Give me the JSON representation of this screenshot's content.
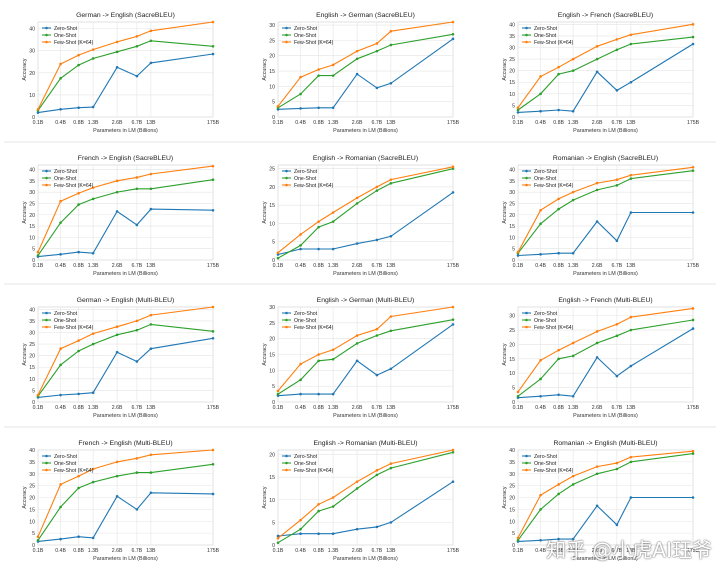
{
  "figure": {
    "x_axis_label": "Parameters in LM (Billions)",
    "y_axis_label": "Accuracy"
  },
  "legend": [
    "Zero-Shot",
    "One-Shot",
    "Few-Shot (K=64)"
  ],
  "colors": {
    "zero": "#1f77b4",
    "one": "#2ca02c",
    "few": "#ff7f0e",
    "grid": "#e4e4e4",
    "text": "#333333"
  },
  "x_tick_labels": [
    "0.1B",
    "0.4B",
    "0.8B",
    "1.3B",
    "2.6B",
    "6.7B",
    "13B",
    "175B"
  ],
  "watermark": "知乎 @小虎AI珏爷",
  "chart_data": [
    {
      "type": "line",
      "title": "German -> English (SacreBLEU)",
      "xlabel": "Parameters in LM (Billions)",
      "ylabel": "Accuracy",
      "x": [
        "0.1B",
        "0.4B",
        "0.8B",
        "1.3B",
        "2.6B",
        "6.7B",
        "13B",
        "175B"
      ],
      "ylim": [
        0,
        43
      ],
      "yticks": [
        0,
        10,
        20,
        30,
        40
      ],
      "series": [
        {
          "name": "Zero-Shot",
          "values": [
            2,
            3.5,
            4.2,
            4.5,
            22.5,
            18.5,
            24.5,
            28.5
          ]
        },
        {
          "name": "One-Shot",
          "values": [
            3,
            17.5,
            23.5,
            26.5,
            29.5,
            32,
            34.5,
            32
          ]
        },
        {
          "name": "Few-Shot (K=64)",
          "values": [
            3.5,
            24,
            28,
            30.5,
            34,
            36.5,
            39,
            43
          ]
        }
      ]
    },
    {
      "type": "line",
      "title": "English -> German (SacreBLEU)",
      "xlabel": "Parameters in LM (Billions)",
      "ylabel": "Accuracy",
      "x": [
        "0.1B",
        "0.4B",
        "0.8B",
        "1.3B",
        "2.6B",
        "6.7B",
        "13B",
        "175B"
      ],
      "ylim": [
        0,
        31
      ],
      "yticks": [
        0,
        5,
        10,
        15,
        20,
        25,
        30
      ],
      "series": [
        {
          "name": "Zero-Shot",
          "values": [
            2.5,
            2.8,
            3,
            3,
            14,
            9.5,
            11,
            25.5
          ]
        },
        {
          "name": "One-Shot",
          "values": [
            3,
            7.5,
            13.5,
            13.5,
            19,
            21.5,
            23.5,
            27
          ]
        },
        {
          "name": "Few-Shot (K=64)",
          "values": [
            3.5,
            13,
            15.5,
            17,
            21.5,
            24,
            28,
            31
          ]
        }
      ]
    },
    {
      "type": "line",
      "title": "English -> French (SacreBLEU)",
      "xlabel": "Parameters in LM (Billions)",
      "ylabel": "Accuracy",
      "x": [
        "0.1B",
        "0.4B",
        "0.8B",
        "1.3B",
        "2.6B",
        "6.7B",
        "13B",
        "175B"
      ],
      "ylim": [
        0,
        41
      ],
      "yticks": [
        0,
        5,
        10,
        15,
        20,
        25,
        30,
        35,
        40
      ],
      "series": [
        {
          "name": "Zero-Shot",
          "values": [
            2,
            2.5,
            3,
            2.5,
            19.5,
            11.5,
            15,
            31.5
          ]
        },
        {
          "name": "One-Shot",
          "values": [
            3,
            10,
            18.5,
            20,
            25,
            29,
            31.5,
            34.5
          ]
        },
        {
          "name": "Few-Shot (K=64)",
          "values": [
            4,
            17.5,
            21.5,
            25,
            30.5,
            33.5,
            35.5,
            40
          ]
        }
      ]
    },
    {
      "type": "line",
      "title": "French -> English (SacreBLEU)",
      "xlabel": "Parameters in LM (Billions)",
      "ylabel": "Accuracy",
      "x": [
        "0.1B",
        "0.4B",
        "0.8B",
        "1.3B",
        "2.6B",
        "6.7B",
        "13B",
        "175B"
      ],
      "ylim": [
        0,
        42
      ],
      "yticks": [
        0,
        5,
        10,
        15,
        20,
        25,
        30,
        35,
        40
      ],
      "series": [
        {
          "name": "Zero-Shot",
          "values": [
            1.5,
            2.5,
            3.5,
            3,
            21.5,
            15.5,
            22.5,
            22
          ]
        },
        {
          "name": "One-Shot",
          "values": [
            2,
            16.5,
            24.5,
            27,
            30,
            31.5,
            31.5,
            35.5
          ]
        },
        {
          "name": "Few-Shot (K=64)",
          "values": [
            3.5,
            26,
            29.5,
            32,
            35,
            36.5,
            38,
            41.5
          ]
        }
      ]
    },
    {
      "type": "line",
      "title": "English -> Romanian (SacreBLEU)",
      "xlabel": "Parameters in LM (Billions)",
      "ylabel": "Accuracy",
      "x": [
        "0.1B",
        "0.4B",
        "0.8B",
        "1.3B",
        "2.6B",
        "6.7B",
        "13B",
        "175B"
      ],
      "ylim": [
        0,
        26
      ],
      "yticks": [
        0,
        5,
        10,
        15,
        20,
        25
      ],
      "series": [
        {
          "name": "Zero-Shot",
          "values": [
            1.5,
            3,
            3,
            3,
            4.5,
            5.5,
            6.5,
            18.5
          ]
        },
        {
          "name": "One-Shot",
          "values": [
            0.5,
            4,
            9,
            10.5,
            15.5,
            19,
            21,
            25
          ]
        },
        {
          "name": "Few-Shot (K=64)",
          "values": [
            2,
            7,
            10.5,
            13,
            17,
            20,
            22,
            25.5
          ]
        }
      ]
    },
    {
      "type": "line",
      "title": "Romanian -> English (SacreBLEU)",
      "xlabel": "Parameters in LM (Billions)",
      "ylabel": "Accuracy",
      "x": [
        "0.1B",
        "0.4B",
        "0.8B",
        "1.3B",
        "2.6B",
        "6.7B",
        "13B",
        "175B"
      ],
      "ylim": [
        0,
        42
      ],
      "yticks": [
        0,
        5,
        10,
        15,
        20,
        25,
        30,
        35,
        40
      ],
      "series": [
        {
          "name": "Zero-Shot",
          "values": [
            2,
            2.5,
            3,
            3,
            17,
            8.5,
            21,
            21
          ]
        },
        {
          "name": "One-Shot",
          "values": [
            3,
            16,
            22.5,
            26.5,
            31,
            33,
            36,
            39.5
          ]
        },
        {
          "name": "Few-Shot (K=64)",
          "values": [
            3.5,
            22,
            27,
            30,
            34,
            35.5,
            37.5,
            41
          ]
        }
      ]
    },
    {
      "type": "line",
      "title": "German -> English (Multi-BLEU)",
      "xlabel": "Parameters in LM (Billions)",
      "ylabel": "Accuracy",
      "x": [
        "0.1B",
        "0.4B",
        "0.8B",
        "1.3B",
        "2.6B",
        "6.7B",
        "13B",
        "175B"
      ],
      "ylim": [
        0,
        41
      ],
      "yticks": [
        0,
        5,
        10,
        15,
        20,
        25,
        30,
        35,
        40
      ],
      "series": [
        {
          "name": "Zero-Shot",
          "values": [
            2,
            3,
            3.5,
            4,
            21.5,
            17.5,
            23,
            27.5
          ]
        },
        {
          "name": "One-Shot",
          "values": [
            2.5,
            16,
            22,
            25,
            29,
            31,
            33.5,
            30.5
          ]
        },
        {
          "name": "Few-Shot (K=64)",
          "values": [
            3,
            23,
            26.5,
            29.5,
            32.5,
            35,
            37.5,
            41
          ]
        }
      ]
    },
    {
      "type": "line",
      "title": "English -> German (Multi-BLEU)",
      "xlabel": "Parameters in LM (Billions)",
      "ylabel": "Accuracy",
      "x": [
        "0.1B",
        "0.4B",
        "0.8B",
        "1.3B",
        "2.6B",
        "6.7B",
        "13B",
        "175B"
      ],
      "ylim": [
        0,
        30
      ],
      "yticks": [
        0,
        5,
        10,
        15,
        20,
        25,
        30
      ],
      "series": [
        {
          "name": "Zero-Shot",
          "values": [
            2,
            2.5,
            2.5,
            2.5,
            13,
            8.5,
            10.5,
            24.5
          ]
        },
        {
          "name": "One-Shot",
          "values": [
            2.5,
            7,
            13,
            13.5,
            18.5,
            21,
            22.5,
            26
          ]
        },
        {
          "name": "Few-Shot (K=64)",
          "values": [
            3.5,
            12,
            15,
            16.5,
            21,
            23,
            27,
            30
          ]
        }
      ]
    },
    {
      "type": "line",
      "title": "English -> French (Multi-BLEU)",
      "xlabel": "Parameters in LM (Billions)",
      "ylabel": "Accuracy",
      "x": [
        "0.1B",
        "0.4B",
        "0.8B",
        "1.3B",
        "2.6B",
        "6.7B",
        "13B",
        "175B"
      ],
      "ylim": [
        0,
        33
      ],
      "yticks": [
        0,
        5,
        10,
        15,
        20,
        25,
        30
      ],
      "series": [
        {
          "name": "Zero-Shot",
          "values": [
            1.5,
            2,
            2.5,
            2,
            15.5,
            9,
            12.5,
            25.5
          ]
        },
        {
          "name": "One-Shot",
          "values": [
            2,
            8,
            15,
            16,
            20.5,
            23,
            25,
            28.5
          ]
        },
        {
          "name": "Few-Shot (K=64)",
          "values": [
            3.5,
            14.5,
            18,
            20.5,
            24.5,
            27,
            29.5,
            32.5
          ]
        }
      ]
    },
    {
      "type": "line",
      "title": "French -> English (Multi-BLEU)",
      "xlabel": "Parameters in LM (Billions)",
      "ylabel": "Accuracy",
      "x": [
        "0.1B",
        "0.4B",
        "0.8B",
        "1.3B",
        "2.6B",
        "6.7B",
        "13B",
        "175B"
      ],
      "ylim": [
        0,
        40
      ],
      "yticks": [
        0,
        5,
        10,
        15,
        20,
        25,
        30,
        35,
        40
      ],
      "series": [
        {
          "name": "Zero-Shot",
          "values": [
            1.5,
            2.5,
            3.5,
            3,
            20.5,
            15,
            22,
            21.5
          ]
        },
        {
          "name": "One-Shot",
          "values": [
            2,
            16,
            24,
            26.5,
            29,
            30.5,
            30.5,
            34
          ]
        },
        {
          "name": "Few-Shot (K=64)",
          "values": [
            3.5,
            25.5,
            29,
            32,
            35,
            36.5,
            38,
            40
          ]
        }
      ]
    },
    {
      "type": "line",
      "title": "English -> Romanian (Multi-BLEU)",
      "xlabel": "Parameters in LM (Billions)",
      "ylabel": "Accuracy",
      "x": [
        "0.1B",
        "0.4B",
        "0.8B",
        "1.3B",
        "2.6B",
        "6.7B",
        "13B",
        "175B"
      ],
      "ylim": [
        0,
        21
      ],
      "yticks": [
        0,
        5,
        10,
        15,
        20
      ],
      "series": [
        {
          "name": "Zero-Shot",
          "values": [
            2,
            2.5,
            2.5,
            2.5,
            3.5,
            4,
            5,
            14
          ]
        },
        {
          "name": "One-Shot",
          "values": [
            0.5,
            3.5,
            7.5,
            8.5,
            12.5,
            15.5,
            17,
            20.5
          ]
        },
        {
          "name": "Few-Shot (K=64)",
          "values": [
            1.5,
            5.5,
            9,
            10.5,
            14,
            16.5,
            18,
            21
          ]
        }
      ]
    },
    {
      "type": "line",
      "title": "Romanian -> English (Multi-BLEU)",
      "xlabel": "Parameters in LM (Billions)",
      "ylabel": "Accuracy",
      "x": [
        "0.1B",
        "0.4B",
        "0.8B",
        "1.3B",
        "2.6B",
        "6.7B",
        "13B",
        "175B"
      ],
      "ylim": [
        0,
        40
      ],
      "yticks": [
        0,
        5,
        10,
        15,
        20,
        25,
        30,
        35,
        40
      ],
      "series": [
        {
          "name": "Zero-Shot",
          "values": [
            1.5,
            2,
            2.5,
            2.5,
            16.5,
            8.5,
            20,
            20
          ]
        },
        {
          "name": "One-Shot",
          "values": [
            2,
            15,
            21.5,
            25.5,
            30,
            32,
            35,
            38.5
          ]
        },
        {
          "name": "Few-Shot (K=64)",
          "values": [
            3,
            21,
            25.5,
            29,
            33,
            34.5,
            37,
            39.5
          ]
        }
      ]
    }
  ]
}
